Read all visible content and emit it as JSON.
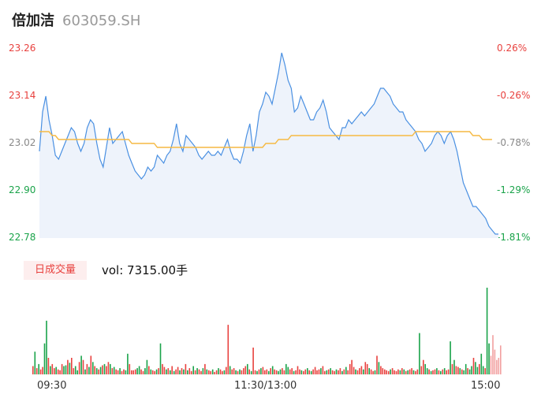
{
  "header": {
    "name": "倍加洁",
    "code": "603059.SH"
  },
  "volume_panel": {
    "tag": "日成交量",
    "readout": "vol: 7315.00手"
  },
  "colors": {
    "price": "#4a90e2",
    "avg": "#f5b942",
    "up": "#e8413e",
    "down": "#1aa34a",
    "neutral": "#888888",
    "area": "#eef3fb"
  },
  "chart_data": [
    {
      "type": "line",
      "title": "",
      "x_ticks": [
        "09:30",
        "11:30/13:00",
        "15:00"
      ],
      "y_ticks_price": [
        "23.26",
        "23.14",
        "23.02",
        "22.90",
        "22.78"
      ],
      "y_ticks_pct": [
        "0.26%",
        "-0.26%",
        "-0.78%",
        "-1.29%",
        "-1.81%"
      ],
      "ylim": [
        22.78,
        23.26
      ],
      "series": [
        {
          "key": "price",
          "values": [
            23.0,
            23.1,
            23.14,
            23.08,
            23.04,
            22.99,
            22.98,
            23.0,
            23.02,
            23.04,
            23.06,
            23.05,
            23.02,
            23.0,
            23.02,
            23.06,
            23.08,
            23.07,
            23.02,
            22.98,
            22.96,
            23.01,
            23.06,
            23.02,
            23.03,
            23.04,
            23.05,
            23.02,
            22.99,
            22.97,
            22.95,
            22.94,
            22.93,
            22.94,
            22.96,
            22.95,
            22.96,
            22.99,
            22.98,
            22.97,
            22.99,
            23.0,
            23.03,
            23.07,
            23.02,
            23.0,
            23.04,
            23.03,
            23.02,
            23.01,
            22.99,
            22.98,
            22.99,
            23.0,
            22.99,
            22.99,
            23.0,
            22.99,
            23.01,
            23.03,
            23.0,
            22.98,
            22.98,
            22.97,
            23.0,
            23.04,
            23.07,
            23.0,
            23.04,
            23.1,
            23.12,
            23.15,
            23.14,
            23.12,
            23.16,
            23.2,
            23.25,
            23.22,
            23.18,
            23.16,
            23.1,
            23.11,
            23.14,
            23.12,
            23.1,
            23.08,
            23.08,
            23.1,
            23.11,
            23.13,
            23.1,
            23.06,
            23.05,
            23.04,
            23.03,
            23.06,
            23.06,
            23.08,
            23.07,
            23.08,
            23.09,
            23.1,
            23.09,
            23.1,
            23.11,
            23.12,
            23.14,
            23.16,
            23.16,
            23.15,
            23.14,
            23.12,
            23.11,
            23.1,
            23.1,
            23.08,
            23.07,
            23.06,
            23.05,
            23.03,
            23.02,
            23.0,
            23.01,
            23.02,
            23.04,
            23.05,
            23.04,
            23.02,
            23.04,
            23.05,
            23.03,
            23.0,
            22.96,
            22.92,
            22.9,
            22.88,
            22.86,
            22.86,
            22.85,
            22.84,
            22.83,
            22.81,
            22.8,
            22.79,
            22.79
          ]
        },
        {
          "key": "avg",
          "values": [
            23.05,
            23.05,
            23.05,
            23.05,
            23.04,
            23.04,
            23.03,
            23.03,
            23.03,
            23.03,
            23.03,
            23.03,
            23.03,
            23.03,
            23.03,
            23.03,
            23.03,
            23.03,
            23.03,
            23.03,
            23.03,
            23.03,
            23.03,
            23.03,
            23.03,
            23.03,
            23.03,
            23.03,
            23.03,
            23.02,
            23.02,
            23.02,
            23.02,
            23.02,
            23.02,
            23.02,
            23.02,
            23.01,
            23.01,
            23.01,
            23.01,
            23.01,
            23.01,
            23.01,
            23.01,
            23.01,
            23.01,
            23.01,
            23.01,
            23.01,
            23.01,
            23.01,
            23.01,
            23.01,
            23.01,
            23.01,
            23.01,
            23.01,
            23.01,
            23.01,
            23.01,
            23.01,
            23.01,
            23.01,
            23.01,
            23.01,
            23.01,
            23.01,
            23.01,
            23.01,
            23.01,
            23.02,
            23.02,
            23.02,
            23.02,
            23.03,
            23.03,
            23.03,
            23.03,
            23.04,
            23.04,
            23.04,
            23.04,
            23.04,
            23.04,
            23.04,
            23.04,
            23.04,
            23.04,
            23.04,
            23.04,
            23.04,
            23.04,
            23.04,
            23.04,
            23.04,
            23.04,
            23.04,
            23.04,
            23.04,
            23.04,
            23.04,
            23.04,
            23.04,
            23.04,
            23.04,
            23.04,
            23.04,
            23.04,
            23.04,
            23.04,
            23.04,
            23.04,
            23.04,
            23.04,
            23.04,
            23.04,
            23.04,
            23.05,
            23.05,
            23.05,
            23.05,
            23.05,
            23.05,
            23.05,
            23.05,
            23.05,
            23.05,
            23.05,
            23.05,
            23.05,
            23.05,
            23.05,
            23.05,
            23.05,
            23.05,
            23.04,
            23.04,
            23.04,
            23.03,
            23.03,
            23.03,
            23.03
          ]
        }
      ]
    },
    {
      "type": "bar",
      "title": "",
      "ylim": [
        0,
        210
      ],
      "values": [
        20,
        55,
        15,
        25,
        12,
        18,
        75,
        130,
        40,
        20,
        25,
        15,
        18,
        12,
        10,
        25,
        20,
        22,
        35,
        28,
        40,
        15,
        20,
        10,
        30,
        45,
        35,
        12,
        25,
        18,
        45,
        30,
        20,
        15,
        12,
        18,
        22,
        25,
        20,
        30,
        25,
        15,
        18,
        12,
        10,
        15,
        8,
        12,
        10,
        50,
        25,
        10,
        10,
        12,
        15,
        20,
        12,
        8,
        15,
        35,
        20,
        12,
        10,
        8,
        12,
        15,
        75,
        25,
        18,
        12,
        15,
        10,
        20,
        8,
        12,
        18,
        10,
        15,
        12,
        25,
        10,
        15,
        8,
        20,
        10,
        15,
        12,
        8,
        15,
        25,
        12,
        10,
        8,
        12,
        6,
        10,
        15,
        12,
        8,
        10,
        18,
        120,
        20,
        12,
        15,
        10,
        8,
        12,
        10,
        15,
        20,
        25,
        12,
        8,
        65,
        10,
        8,
        12,
        15,
        18,
        10,
        12,
        8,
        15,
        20,
        12,
        10,
        8,
        12,
        15,
        10,
        25,
        18,
        12,
        15,
        8,
        10,
        20,
        12,
        10,
        8,
        12,
        15,
        10,
        8,
        12,
        18,
        10,
        12,
        15,
        20,
        8,
        10,
        12,
        15,
        10,
        8,
        12,
        10,
        15,
        8,
        12,
        18,
        10,
        25,
        35,
        18,
        12,
        10,
        15,
        20,
        12,
        30,
        25,
        15,
        12,
        8,
        10,
        45,
        30,
        20,
        15,
        12,
        10,
        8,
        12,
        15,
        10,
        8,
        12,
        10,
        15,
        12,
        8,
        10,
        12,
        15,
        10,
        8,
        12,
        100,
        20,
        35,
        25,
        15,
        12,
        8,
        10,
        12,
        15,
        10,
        8,
        12,
        15,
        10,
        12,
        80,
        25,
        35,
        20,
        18,
        15,
        12,
        10,
        25,
        15,
        12,
        20,
        40,
        30,
        18,
        25,
        50,
        20,
        15,
        210,
        75,
        45,
        95,
        60,
        35,
        40,
        70
      ],
      "directions": [
        "u",
        "d",
        "u",
        "d",
        "u",
        "u",
        "d",
        "d",
        "u",
        "d",
        "u",
        "u",
        "d",
        "u",
        "u",
        "u",
        "d",
        "d",
        "u",
        "d",
        "u",
        "u",
        "d",
        "d",
        "u",
        "d",
        "u",
        "d",
        "u",
        "d",
        "u",
        "d",
        "u",
        "d",
        "u",
        "d",
        "u",
        "d",
        "u",
        "u",
        "d",
        "u",
        "d",
        "u",
        "u",
        "d",
        "u",
        "u",
        "d",
        "d",
        "u",
        "u",
        "u",
        "u",
        "d",
        "d",
        "u",
        "u",
        "d",
        "d",
        "u",
        "d",
        "u",
        "u",
        "d",
        "u",
        "d",
        "u",
        "u",
        "d",
        "u",
        "d",
        "u",
        "d",
        "u",
        "u",
        "d",
        "u",
        "d",
        "u",
        "d",
        "u",
        "u",
        "d",
        "u",
        "d",
        "u",
        "u",
        "d",
        "u",
        "d",
        "u",
        "u",
        "d",
        "u",
        "u",
        "d",
        "u",
        "u",
        "d",
        "u",
        "u",
        "d",
        "u",
        "u",
        "d",
        "u",
        "d",
        "u",
        "u",
        "u",
        "d",
        "u",
        "d",
        "u",
        "u",
        "d",
        "u",
        "d",
        "u",
        "u",
        "u",
        "d",
        "u",
        "d",
        "u",
        "u",
        "d",
        "d",
        "u",
        "u",
        "d",
        "d",
        "u",
        "u",
        "d",
        "u",
        "u",
        "u",
        "d",
        "u",
        "u",
        "d",
        "u",
        "d",
        "u",
        "u",
        "u",
        "u",
        "d",
        "u",
        "u",
        "d",
        "u",
        "d",
        "u",
        "u",
        "d",
        "u",
        "u",
        "d",
        "u",
        "d",
        "u",
        "u",
        "u",
        "u",
        "d",
        "u",
        "u",
        "u",
        "d",
        "u",
        "u",
        "d",
        "u",
        "u",
        "d",
        "u",
        "d",
        "u",
        "u",
        "u",
        "u",
        "u",
        "d",
        "u",
        "u",
        "u",
        "u",
        "d",
        "u",
        "d",
        "u",
        "d",
        "u",
        "u",
        "d",
        "u",
        "u",
        "d",
        "u",
        "u",
        "d",
        "d",
        "u",
        "d",
        "u",
        "u",
        "d",
        "u",
        "d",
        "u",
        "d",
        "u",
        "u",
        "d",
        "u",
        "d",
        "u",
        "u",
        "d",
        "u",
        "d",
        "d",
        "u",
        "d",
        "d",
        "u",
        "d",
        "d",
        "u",
        "d",
        "d",
        "u",
        "d",
        "d",
        "n"
      ]
    }
  ]
}
